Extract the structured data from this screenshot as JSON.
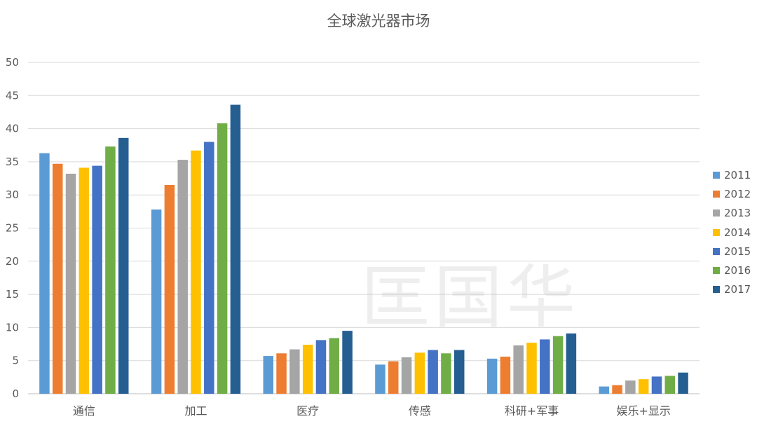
{
  "chart_data": {
    "type": "bar",
    "title": "全球激光器市场",
    "categories": [
      "通信",
      "加工",
      "医疗",
      "传感",
      "科研+军事",
      "娱乐+显示"
    ],
    "series": [
      {
        "name": "2011",
        "color": "#5b9bd5",
        "values": [
          36.3,
          27.8,
          5.7,
          4.4,
          5.3,
          1.1
        ]
      },
      {
        "name": "2012",
        "color": "#ed7d31",
        "values": [
          34.7,
          31.5,
          6.1,
          4.9,
          5.6,
          1.3
        ]
      },
      {
        "name": "2013",
        "color": "#a5a5a5",
        "values": [
          33.2,
          35.3,
          6.7,
          5.5,
          7.3,
          2.0
        ]
      },
      {
        "name": "2014",
        "color": "#ffc000",
        "values": [
          34.1,
          36.7,
          7.4,
          6.2,
          7.7,
          2.2
        ]
      },
      {
        "name": "2015",
        "color": "#4472c4",
        "values": [
          34.4,
          38.0,
          8.1,
          6.6,
          8.2,
          2.6
        ]
      },
      {
        "name": "2016",
        "color": "#70ad47",
        "values": [
          37.3,
          40.8,
          8.4,
          6.1,
          8.7,
          2.7
        ]
      },
      {
        "name": "2017",
        "color": "#255e91",
        "values": [
          38.6,
          43.6,
          9.5,
          6.6,
          9.1,
          3.2
        ]
      }
    ],
    "yticks": [
      "0",
      "5",
      "10",
      "15",
      "20",
      "25",
      "30",
      "35",
      "40",
      "45",
      "50"
    ],
    "ylim": [
      0,
      50
    ],
    "grid": true,
    "legend": "right"
  },
  "watermark": "匡国华"
}
